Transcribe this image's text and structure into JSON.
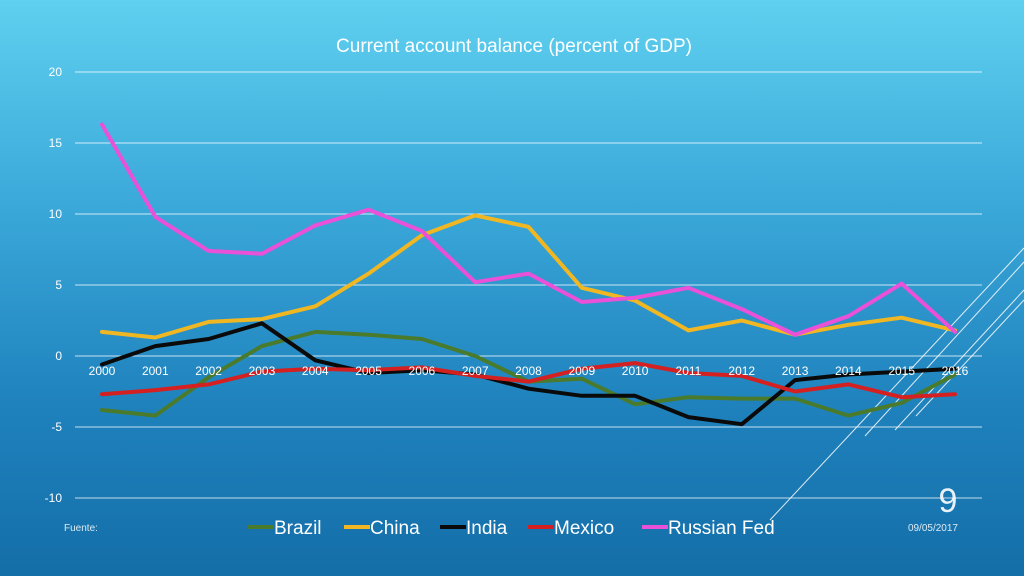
{
  "chart_data": {
    "type": "line",
    "title": "Current account balance (percent of GDP)",
    "x": [
      "2000",
      "2001",
      "2002",
      "2003",
      "2004",
      "2005",
      "2006",
      "2007",
      "2008",
      "2009",
      "2010",
      "2011",
      "2012",
      "2013",
      "2014",
      "2015",
      "2016"
    ],
    "yticks": [
      "20",
      "15",
      "10",
      "5",
      "0",
      "-5",
      "-10"
    ],
    "ylim": [
      -10,
      20
    ],
    "grid": true,
    "legend_position": "bottom",
    "series": [
      {
        "name": "Brazil",
        "color": "#4a7a2b",
        "values": [
          -3.8,
          -4.2,
          -1.5,
          0.7,
          1.7,
          1.5,
          1.2,
          0.0,
          -1.8,
          -1.6,
          -3.4,
          -2.9,
          -3.0,
          -3.0,
          -4.2,
          -3.3,
          -1.3
        ]
      },
      {
        "name": "China",
        "color": "#f0b722",
        "values": [
          1.7,
          1.3,
          2.4,
          2.6,
          3.5,
          5.8,
          8.5,
          9.9,
          9.1,
          4.8,
          3.9,
          1.8,
          2.5,
          1.5,
          2.2,
          2.7,
          1.8
        ]
      },
      {
        "name": "India",
        "color": "#0a0a0a",
        "values": [
          -0.6,
          0.7,
          1.2,
          2.3,
          -0.3,
          -1.2,
          -1.0,
          -1.3,
          -2.3,
          -2.8,
          -2.8,
          -4.3,
          -4.8,
          -1.7,
          -1.3,
          -1.1,
          -0.9
        ]
      },
      {
        "name": "Mexico",
        "color": "#d42020",
        "values": [
          -2.7,
          -2.4,
          -2.0,
          -1.1,
          -0.9,
          -1.0,
          -0.8,
          -1.4,
          -1.8,
          -0.9,
          -0.5,
          -1.2,
          -1.4,
          -2.5,
          -2.0,
          -2.9,
          -2.7
        ]
      },
      {
        "name": "Russian Fed",
        "color": "#e851d8",
        "values": [
          16.3,
          9.8,
          7.4,
          7.2,
          9.2,
          10.3,
          8.8,
          5.2,
          5.8,
          3.8,
          4.1,
          4.8,
          3.3,
          1.5,
          2.8,
          5.1,
          1.7
        ]
      }
    ]
  },
  "footer": {
    "source_label": "Fuente:",
    "date": "09/05/2017",
    "slide_number": "9"
  }
}
